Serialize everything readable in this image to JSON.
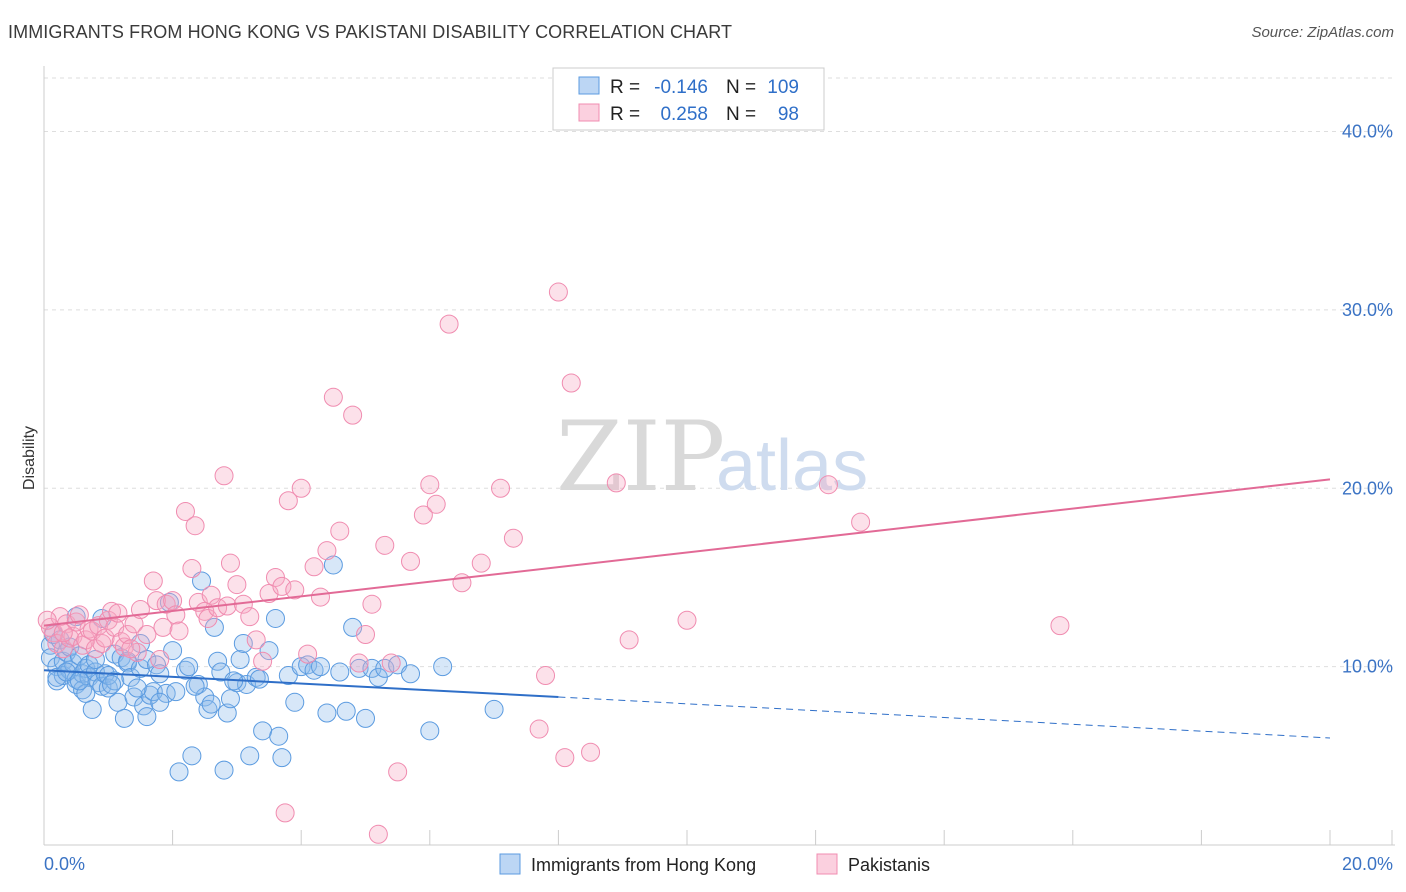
{
  "title": "IMMIGRANTS FROM HONG KONG VS PAKISTANI DISABILITY CORRELATION CHART",
  "source": "Source: ZipAtlas.com",
  "watermark": {
    "part1": "ZIP",
    "part2": "atlas"
  },
  "colors": {
    "blue": "#5b9be0",
    "blue_line": "#2f6fc8",
    "pink": "#f08cb0",
    "pink_line": "#e26a96",
    "axis_text": "#3b73c4"
  },
  "legend": {
    "rows": [
      {
        "r_label": "R =",
        "r_value": "-0.146",
        "n_label": "N =",
        "n_value": "109"
      },
      {
        "r_label": "R =",
        "r_value": "0.258",
        "n_label": "N =",
        "n_value": "98"
      }
    ]
  },
  "bottom_legend": [
    "Immigrants from Hong Kong",
    "Pakistanis"
  ],
  "chart_data": {
    "type": "scatter",
    "title": "IMMIGRANTS FROM HONG KONG VS PAKISTANI DISABILITY CORRELATION CHART",
    "xlabel": "",
    "ylabel": "Disability",
    "xlim": [
      0,
      20
    ],
    "ylim": [
      0,
      43
    ],
    "x_tick_labels": [
      "0.0%",
      "20.0%"
    ],
    "y_ticks": [
      10,
      20,
      30,
      40
    ],
    "y_tick_labels": [
      "10.0%",
      "20.0%",
      "30.0%",
      "40.0%"
    ],
    "grid": true,
    "legend_position": "top-center",
    "series": [
      {
        "name": "Immigrants from Hong Kong",
        "r": -0.146,
        "n": 109,
        "trend": {
          "x": [
            0,
            8
          ],
          "y": [
            9.8,
            8.3
          ],
          "dashed_x": [
            8,
            20
          ],
          "dashed_y": [
            8.3,
            6.0
          ]
        },
        "points": [
          [
            0.1,
            11.2
          ],
          [
            0.1,
            10.5
          ],
          [
            0.15,
            11.8
          ],
          [
            0.2,
            10.0
          ],
          [
            0.2,
            9.2
          ],
          [
            0.25,
            11.5
          ],
          [
            0.3,
            10.3
          ],
          [
            0.3,
            9.5
          ],
          [
            0.35,
            10.8
          ],
          [
            0.4,
            9.8
          ],
          [
            0.4,
            11.1
          ],
          [
            0.45,
            10.2
          ],
          [
            0.5,
            9.3
          ],
          [
            0.5,
            9.0
          ],
          [
            0.55,
            10.6
          ],
          [
            0.6,
            9.6
          ],
          [
            0.6,
            8.7
          ],
          [
            0.65,
            9.9
          ],
          [
            0.7,
            9.4
          ],
          [
            0.7,
            10.1
          ],
          [
            0.75,
            7.6
          ],
          [
            0.8,
            9.7
          ],
          [
            0.85,
            9.1
          ],
          [
            0.9,
            8.9
          ],
          [
            0.9,
            12.7
          ],
          [
            0.95,
            9.6
          ],
          [
            1.0,
            8.8
          ],
          [
            1.0,
            9.5
          ],
          [
            1.1,
            9.2
          ],
          [
            1.1,
            10.7
          ],
          [
            1.15,
            8.0
          ],
          [
            1.2,
            10.5
          ],
          [
            1.25,
            7.1
          ],
          [
            1.3,
            10.2
          ],
          [
            1.3,
            10.3
          ],
          [
            1.35,
            9.4
          ],
          [
            1.4,
            8.3
          ],
          [
            1.5,
            11.3
          ],
          [
            1.5,
            9.9
          ],
          [
            1.55,
            7.8
          ],
          [
            1.6,
            7.2
          ],
          [
            1.6,
            10.4
          ],
          [
            1.65,
            8.4
          ],
          [
            1.7,
            8.6
          ],
          [
            1.75,
            10.1
          ],
          [
            1.8,
            9.6
          ],
          [
            1.9,
            8.5
          ],
          [
            1.95,
            13.6
          ],
          [
            2.0,
            10.9
          ],
          [
            2.05,
            8.6
          ],
          [
            2.1,
            4.1
          ],
          [
            2.2,
            9.8
          ],
          [
            2.25,
            10.0
          ],
          [
            2.3,
            5.0
          ],
          [
            2.4,
            9.0
          ],
          [
            2.45,
            14.8
          ],
          [
            2.5,
            8.3
          ],
          [
            2.55,
            7.6
          ],
          [
            2.6,
            7.9
          ],
          [
            2.65,
            12.2
          ],
          [
            2.7,
            10.3
          ],
          [
            2.75,
            9.7
          ],
          [
            2.8,
            4.2
          ],
          [
            2.85,
            7.4
          ],
          [
            2.9,
            8.2
          ],
          [
            3.0,
            9.1
          ],
          [
            3.05,
            10.4
          ],
          [
            3.1,
            11.3
          ],
          [
            3.15,
            9.0
          ],
          [
            3.2,
            5.0
          ],
          [
            3.3,
            9.4
          ],
          [
            3.35,
            9.3
          ],
          [
            3.4,
            6.4
          ],
          [
            3.5,
            10.9
          ],
          [
            3.6,
            12.7
          ],
          [
            3.65,
            6.1
          ],
          [
            3.7,
            4.9
          ],
          [
            3.8,
            9.5
          ],
          [
            3.9,
            8.0
          ],
          [
            4.0,
            10.0
          ],
          [
            4.1,
            10.1
          ],
          [
            4.2,
            9.8
          ],
          [
            4.3,
            10.0
          ],
          [
            4.4,
            7.4
          ],
          [
            4.5,
            15.7
          ],
          [
            4.6,
            9.7
          ],
          [
            4.7,
            7.5
          ],
          [
            4.8,
            12.2
          ],
          [
            4.9,
            9.9
          ],
          [
            5.0,
            7.1
          ],
          [
            5.1,
            9.9
          ],
          [
            5.2,
            9.4
          ],
          [
            5.3,
            9.9
          ],
          [
            5.5,
            10.1
          ],
          [
            5.7,
            9.6
          ],
          [
            6.0,
            6.4
          ],
          [
            6.2,
            10.0
          ],
          [
            7.0,
            7.6
          ],
          [
            0.5,
            12.8
          ],
          [
            1.8,
            8.0
          ],
          [
            0.2,
            9.4
          ],
          [
            0.35,
            9.7
          ],
          [
            0.65,
            8.5
          ],
          [
            1.05,
            9.0
          ],
          [
            1.45,
            8.8
          ],
          [
            2.35,
            8.9
          ],
          [
            2.95,
            9.2
          ],
          [
            0.8,
            10.4
          ],
          [
            0.55,
            9.2
          ]
        ]
      },
      {
        "name": "Pakistanis",
        "r": 0.258,
        "n": 98,
        "trend": {
          "x": [
            0,
            20
          ],
          "y": [
            12.3,
            20.5
          ]
        },
        "points": [
          [
            0.1,
            12.2
          ],
          [
            0.15,
            11.9
          ],
          [
            0.2,
            11.3
          ],
          [
            0.25,
            12.8
          ],
          [
            0.3,
            11.0
          ],
          [
            0.35,
            12.4
          ],
          [
            0.4,
            11.6
          ],
          [
            0.45,
            11.7
          ],
          [
            0.5,
            12.5
          ],
          [
            0.55,
            12.9
          ],
          [
            0.6,
            11.2
          ],
          [
            0.65,
            11.5
          ],
          [
            0.7,
            12.1
          ],
          [
            0.75,
            12.0
          ],
          [
            0.8,
            11.0
          ],
          [
            0.85,
            12.3
          ],
          [
            0.9,
            11.3
          ],
          [
            0.95,
            11.6
          ],
          [
            1.0,
            12.6
          ],
          [
            1.05,
            13.1
          ],
          [
            1.1,
            12.2
          ],
          [
            1.15,
            13.0
          ],
          [
            1.2,
            11.4
          ],
          [
            1.25,
            11.1
          ],
          [
            1.3,
            11.8
          ],
          [
            1.4,
            12.4
          ],
          [
            1.45,
            10.8
          ],
          [
            1.5,
            13.2
          ],
          [
            1.6,
            11.8
          ],
          [
            1.7,
            14.8
          ],
          [
            1.75,
            13.7
          ],
          [
            1.8,
            10.4
          ],
          [
            1.85,
            12.2
          ],
          [
            1.9,
            13.5
          ],
          [
            2.0,
            13.7
          ],
          [
            2.05,
            12.9
          ],
          [
            2.1,
            12.0
          ],
          [
            2.2,
            18.7
          ],
          [
            2.3,
            15.5
          ],
          [
            2.35,
            17.9
          ],
          [
            2.4,
            13.6
          ],
          [
            2.5,
            13.1
          ],
          [
            2.55,
            12.7
          ],
          [
            2.6,
            14.0
          ],
          [
            2.7,
            13.3
          ],
          [
            2.8,
            20.7
          ],
          [
            2.85,
            13.4
          ],
          [
            2.9,
            15.8
          ],
          [
            3.0,
            14.6
          ],
          [
            3.1,
            13.5
          ],
          [
            3.2,
            12.8
          ],
          [
            3.3,
            11.5
          ],
          [
            3.4,
            10.3
          ],
          [
            3.5,
            14.1
          ],
          [
            3.6,
            15.0
          ],
          [
            3.7,
            14.5
          ],
          [
            3.75,
            1.8
          ],
          [
            3.8,
            19.3
          ],
          [
            3.9,
            14.3
          ],
          [
            4.0,
            20.0
          ],
          [
            4.1,
            10.7
          ],
          [
            4.2,
            15.6
          ],
          [
            4.3,
            13.9
          ],
          [
            4.4,
            16.5
          ],
          [
            4.5,
            25.1
          ],
          [
            4.6,
            17.6
          ],
          [
            4.8,
            24.1
          ],
          [
            4.9,
            10.2
          ],
          [
            5.0,
            11.8
          ],
          [
            5.1,
            13.5
          ],
          [
            5.2,
            0.6
          ],
          [
            5.3,
            16.8
          ],
          [
            5.4,
            10.2
          ],
          [
            5.5,
            4.1
          ],
          [
            5.7,
            15.9
          ],
          [
            5.9,
            18.5
          ],
          [
            6.0,
            20.2
          ],
          [
            6.1,
            19.1
          ],
          [
            6.3,
            29.2
          ],
          [
            6.5,
            14.7
          ],
          [
            6.8,
            15.8
          ],
          [
            7.1,
            20.0
          ],
          [
            7.3,
            17.2
          ],
          [
            7.7,
            6.5
          ],
          [
            7.8,
            9.5
          ],
          [
            8.0,
            31.0
          ],
          [
            8.1,
            4.9
          ],
          [
            8.2,
            25.9
          ],
          [
            8.5,
            5.2
          ],
          [
            8.9,
            20.3
          ],
          [
            9.1,
            11.5
          ],
          [
            10.0,
            12.6
          ],
          [
            12.2,
            20.2
          ],
          [
            12.7,
            18.1
          ],
          [
            15.8,
            12.3
          ],
          [
            0.05,
            12.6
          ],
          [
            0.3,
            11.9
          ],
          [
            1.35,
            11.0
          ]
        ]
      }
    ]
  }
}
